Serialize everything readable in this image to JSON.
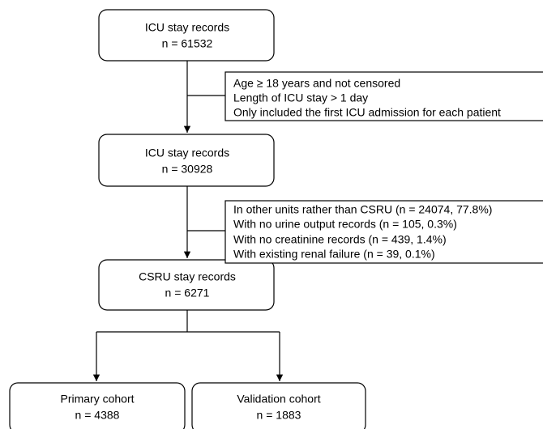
{
  "nodes": [
    {
      "label": "ICU stay records",
      "count": "n = 61532"
    },
    {
      "label": "ICU stay records",
      "count": "n = 30928"
    },
    {
      "label": "CSRU stay records",
      "count": "n = 6271"
    },
    {
      "label": "Primary cohort",
      "count": "n = 4388"
    },
    {
      "label": "Validation cohort",
      "count": "n = 1883"
    }
  ],
  "exclusions": [
    {
      "lines": [
        "Age ≥ 18 years and not censored",
        "Length of ICU stay > 1 day",
        "Only included the first ICU admission for each patient"
      ]
    },
    {
      "lines": [
        "In other units rather than CSRU (n = 24074, 77.8%)",
        "With no urine output records (n = 105, 0.3%)",
        "With no creatinine records (n = 439, 1.4%)",
        "With existing renal failure (n = 39, 0.1%)"
      ]
    }
  ]
}
